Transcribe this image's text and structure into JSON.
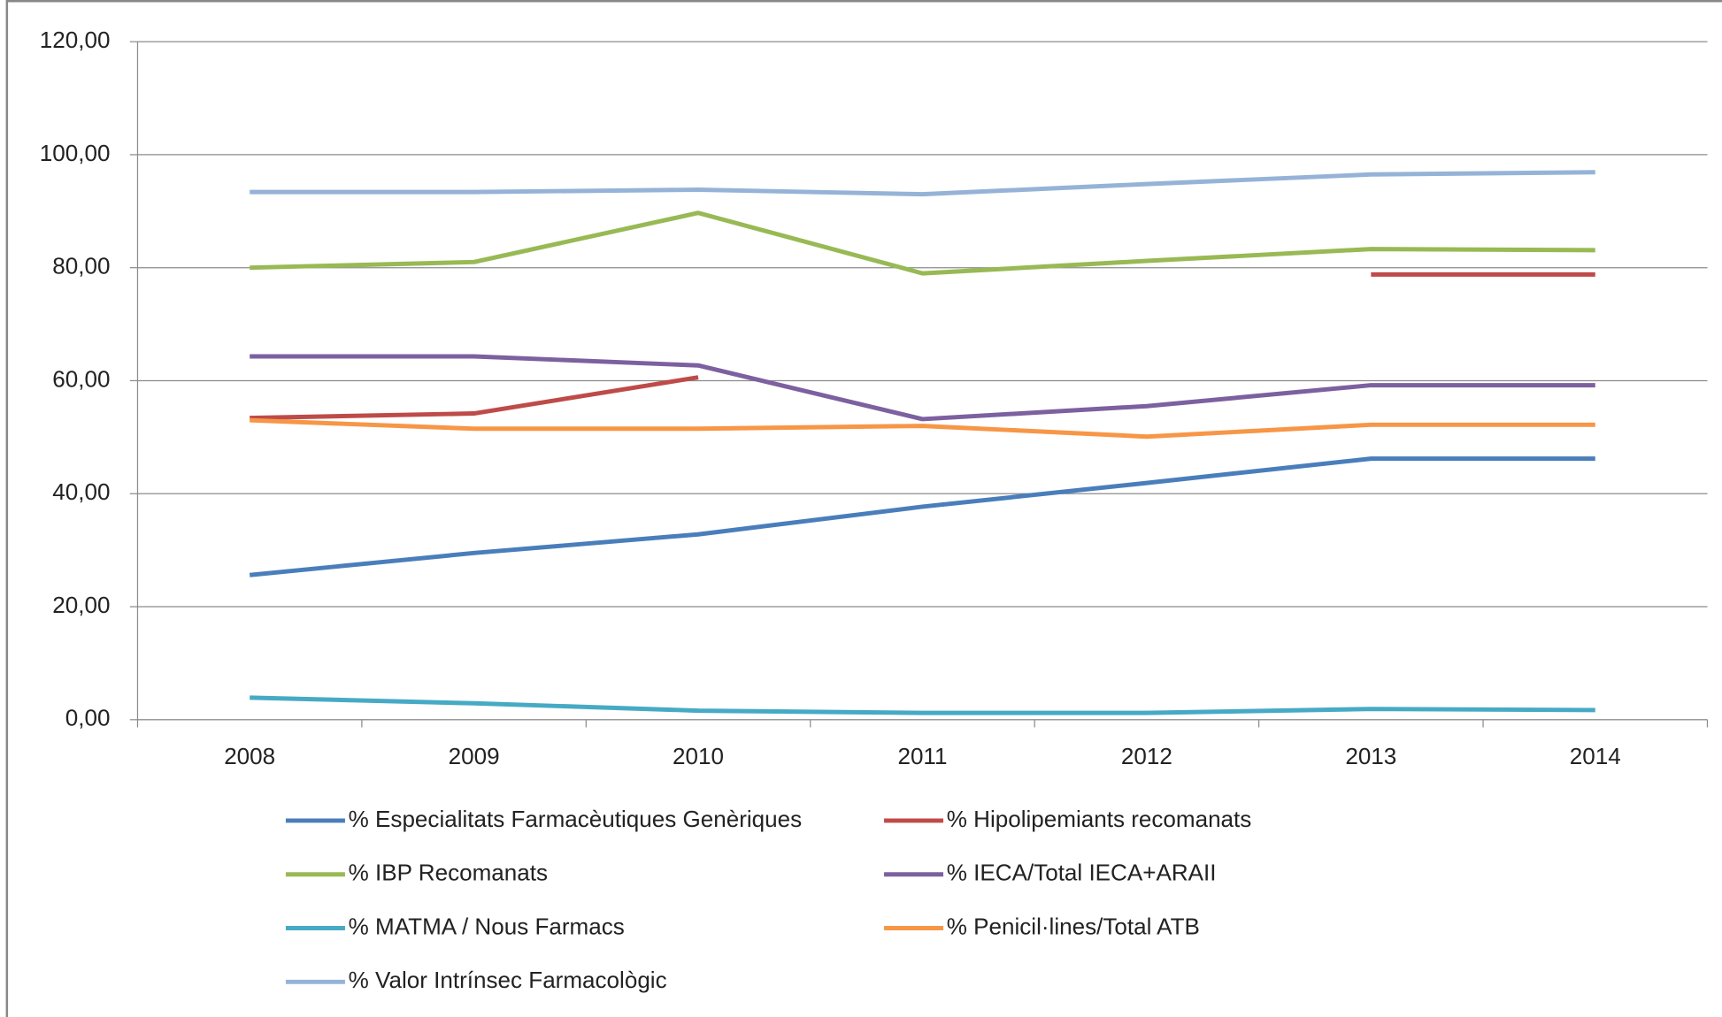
{
  "chart_data": {
    "type": "line",
    "categories": [
      "2008",
      "2009",
      "2010",
      "2011",
      "2012",
      "2013",
      "2014"
    ],
    "ylim": [
      0,
      120
    ],
    "yticks": [
      {
        "value": 0,
        "label": "0,00"
      },
      {
        "value": 20,
        "label": "20,00"
      },
      {
        "value": 40,
        "label": "40,00"
      },
      {
        "value": 60,
        "label": "60,00"
      },
      {
        "value": 80,
        "label": "80,00"
      },
      {
        "value": 100,
        "label": "100,00"
      },
      {
        "value": 120,
        "label": "120,00"
      }
    ],
    "grid": true,
    "legend": "bottom",
    "series": [
      {
        "name": "% Especialitats Farmacèutiques Genèriques",
        "color": "#4a7ebb",
        "values": [
          25.6,
          29.5,
          32.8,
          37.7,
          41.9,
          46.2,
          46.2
        ]
      },
      {
        "name": "% Hipolipemiants recomanats",
        "color": "#be4b48",
        "values": [
          53.4,
          54.2,
          60.6,
          null,
          null,
          78.8,
          78.8
        ]
      },
      {
        "name": "% IBP Recomanats",
        "color": "#98b954",
        "values": [
          80.0,
          81.0,
          89.7,
          79.0,
          81.2,
          83.3,
          83.1
        ]
      },
      {
        "name": "% IECA/Total IECA+ARAII",
        "color": "#7d60a0",
        "values": [
          64.3,
          64.3,
          62.7,
          53.2,
          55.5,
          59.2,
          59.2
        ]
      },
      {
        "name": "% MATMA / Nous Farmacs",
        "color": "#46aac5",
        "values": [
          3.9,
          2.9,
          1.6,
          1.2,
          1.2,
          1.9,
          1.7
        ]
      },
      {
        "name": "% Penicil·lines/Total ATB",
        "color": "#f79646",
        "values": [
          53.0,
          51.5,
          51.5,
          52.0,
          50.1,
          52.2,
          52.2
        ]
      },
      {
        "name": "% Valor Intrínsec Farmacològic",
        "color": "#95b3d7",
        "values": [
          93.4,
          93.4,
          93.8,
          93.0,
          94.8,
          96.5,
          96.9
        ]
      }
    ]
  }
}
